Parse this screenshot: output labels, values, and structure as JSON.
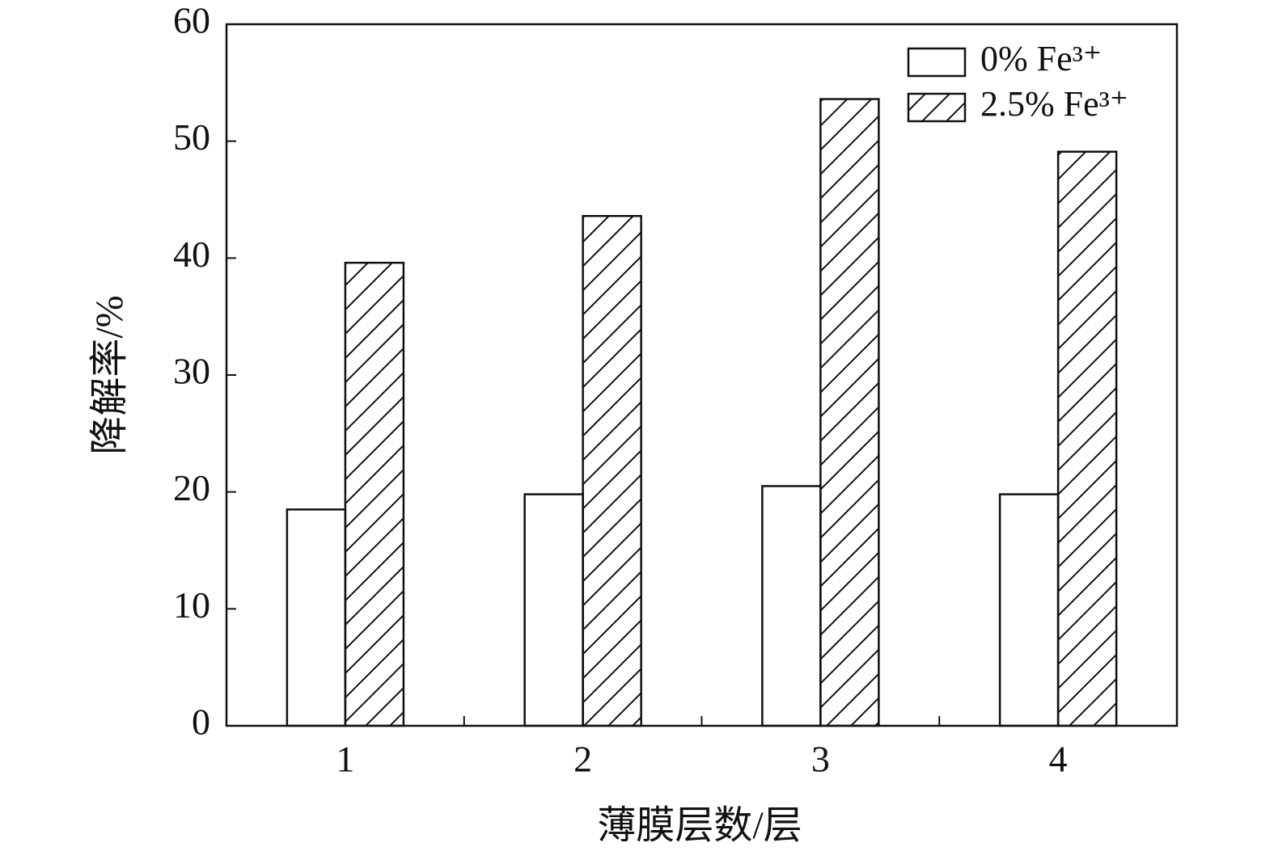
{
  "chart_data": {
    "type": "bar",
    "x_label": "薄膜层数/层",
    "y_label": "降解率/%",
    "categories": [
      "1",
      "2",
      "3",
      "4"
    ],
    "series": [
      {
        "name": "0% Fe³⁺",
        "color": "#ffffff",
        "hatch": false,
        "values": [
          18.5,
          19.8,
          20.5,
          19.8
        ]
      },
      {
        "name": "2.5% Fe³⁺",
        "color": "#ffffff",
        "hatch": true,
        "values": [
          39.6,
          43.6,
          53.6,
          49.1
        ]
      }
    ],
    "ylim": [
      0,
      60
    ],
    "yticks": [
      0,
      10,
      20,
      30,
      40,
      50,
      60
    ],
    "grid": false,
    "legend": "upper right"
  }
}
